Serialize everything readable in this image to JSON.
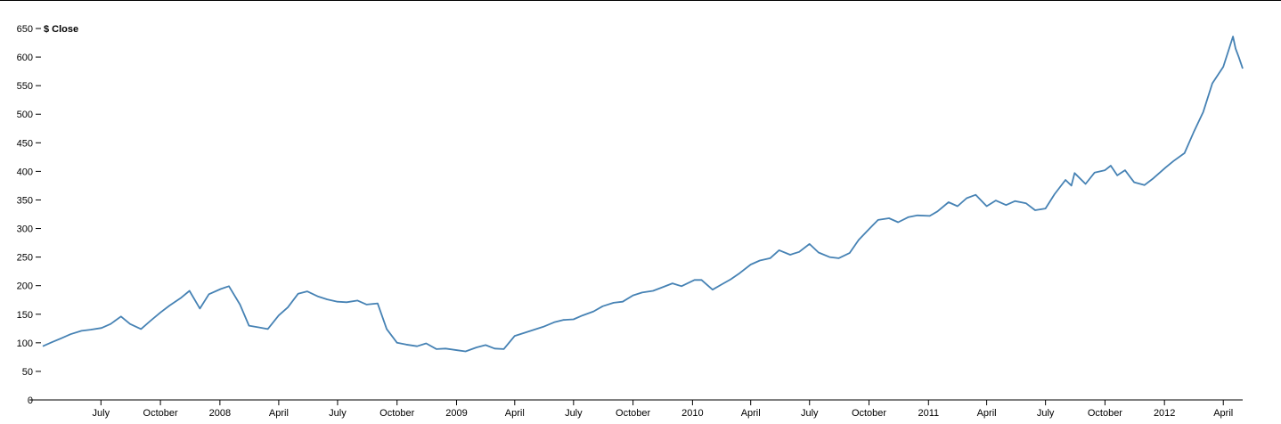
{
  "chart_data": {
    "type": "line",
    "ylabel": "$ Close",
    "ylim": [
      0,
      650
    ],
    "xlim": [
      "2007-04-02",
      "2012-05-01"
    ],
    "grid": false,
    "line_color": "#4682b4",
    "y_ticks": [
      0,
      50,
      100,
      150,
      200,
      250,
      300,
      350,
      400,
      450,
      500,
      550,
      600,
      650
    ],
    "x_ticks": [
      {
        "date": "2007-07-01",
        "label": "July"
      },
      {
        "date": "2007-10-01",
        "label": "October"
      },
      {
        "date": "2008-01-01",
        "label": "2008"
      },
      {
        "date": "2008-04-01",
        "label": "April"
      },
      {
        "date": "2008-07-01",
        "label": "July"
      },
      {
        "date": "2008-10-01",
        "label": "October"
      },
      {
        "date": "2009-01-01",
        "label": "2009"
      },
      {
        "date": "2009-04-01",
        "label": "April"
      },
      {
        "date": "2009-07-01",
        "label": "July"
      },
      {
        "date": "2009-10-01",
        "label": "October"
      },
      {
        "date": "2010-01-01",
        "label": "2010"
      },
      {
        "date": "2010-04-01",
        "label": "April"
      },
      {
        "date": "2010-07-01",
        "label": "July"
      },
      {
        "date": "2010-10-01",
        "label": "October"
      },
      {
        "date": "2011-01-01",
        "label": "2011"
      },
      {
        "date": "2011-04-01",
        "label": "April"
      },
      {
        "date": "2011-07-01",
        "label": "July"
      },
      {
        "date": "2011-10-01",
        "label": "October"
      },
      {
        "date": "2012-01-01",
        "label": "2012"
      },
      {
        "date": "2012-04-01",
        "label": "April"
      }
    ],
    "series": [
      {
        "x": [
          "2007-04-02",
          "2007-04-16",
          "2007-05-01",
          "2007-05-15",
          "2007-06-01",
          "2007-06-15",
          "2007-07-02",
          "2007-07-16",
          "2007-08-01",
          "2007-08-15",
          "2007-09-01",
          "2007-09-15",
          "2007-10-01",
          "2007-10-15",
          "2007-11-01",
          "2007-11-15",
          "2007-12-01",
          "2007-12-15",
          "2008-01-02",
          "2008-01-15",
          "2008-02-01",
          "2008-02-15",
          "2008-03-01",
          "2008-03-15",
          "2008-04-01",
          "2008-04-15",
          "2008-05-01",
          "2008-05-15",
          "2008-06-01",
          "2008-06-15",
          "2008-07-01",
          "2008-07-15",
          "2008-08-01",
          "2008-08-15",
          "2008-09-01",
          "2008-09-15",
          "2008-10-01",
          "2008-10-15",
          "2008-11-01",
          "2008-11-15",
          "2008-12-01",
          "2008-12-15",
          "2009-01-02",
          "2009-01-15",
          "2009-02-01",
          "2009-02-15",
          "2009-03-01",
          "2009-03-15",
          "2009-04-01",
          "2009-04-15",
          "2009-05-01",
          "2009-05-15",
          "2009-06-01",
          "2009-06-15",
          "2009-07-01",
          "2009-07-15",
          "2009-08-01",
          "2009-08-15",
          "2009-09-01",
          "2009-09-15",
          "2009-10-01",
          "2009-10-15",
          "2009-11-01",
          "2009-11-15",
          "2009-12-01",
          "2009-12-15",
          "2010-01-04",
          "2010-01-15",
          "2010-02-01",
          "2010-02-15",
          "2010-03-01",
          "2010-03-15",
          "2010-04-01",
          "2010-04-15",
          "2010-05-01",
          "2010-05-15",
          "2010-06-01",
          "2010-06-15",
          "2010-07-01",
          "2010-07-15",
          "2010-08-01",
          "2010-08-15",
          "2010-09-01",
          "2010-09-15",
          "2010-10-01",
          "2010-10-15",
          "2010-11-01",
          "2010-11-15",
          "2010-12-01",
          "2010-12-15",
          "2011-01-03",
          "2011-01-15",
          "2011-02-01",
          "2011-02-15",
          "2011-03-01",
          "2011-03-15",
          "2011-04-01",
          "2011-04-15",
          "2011-05-01",
          "2011-05-15",
          "2011-06-01",
          "2011-06-15",
          "2011-07-01",
          "2011-07-15",
          "2011-08-01",
          "2011-08-10",
          "2011-08-15",
          "2011-09-01",
          "2011-09-15",
          "2011-10-01",
          "2011-10-10",
          "2011-10-20",
          "2011-11-01",
          "2011-11-15",
          "2011-12-01",
          "2011-12-15",
          "2012-01-03",
          "2012-01-15",
          "2012-02-01",
          "2012-02-15",
          "2012-03-01",
          "2012-03-15",
          "2012-04-01",
          "2012-04-10",
          "2012-04-16",
          "2012-04-20",
          "2012-04-25",
          "2012-05-01"
        ],
        "values": [
          94,
          101,
          108,
          115,
          121,
          123,
          126,
          133,
          146,
          133,
          124,
          138,
          153,
          165,
          178,
          191,
          160,
          185,
          194,
          199,
          167,
          130,
          127,
          124,
          148,
          162,
          186,
          190,
          181,
          176,
          172,
          171,
          174,
          167,
          169,
          124,
          100,
          97,
          94,
          99,
          89,
          90,
          87,
          85,
          92,
          96,
          90,
          89,
          112,
          117,
          123,
          128,
          136,
          140,
          141,
          148,
          155,
          164,
          170,
          172,
          183,
          188,
          191,
          197,
          204,
          199,
          210,
          210,
          193,
          202,
          211,
          222,
          237,
          244,
          248,
          262,
          254,
          259,
          273,
          258,
          250,
          248,
          257,
          280,
          299,
          315,
          318,
          311,
          320,
          323,
          322,
          330,
          346,
          339,
          353,
          359,
          339,
          349,
          341,
          348,
          344,
          332,
          335,
          360,
          385,
          375,
          397,
          378,
          398,
          402,
          410,
          393,
          402,
          381,
          376,
          388,
          407,
          418,
          432,
          468,
          504,
          554,
          583,
          615,
          636,
          615,
          600,
          580
        ]
      }
    ]
  }
}
